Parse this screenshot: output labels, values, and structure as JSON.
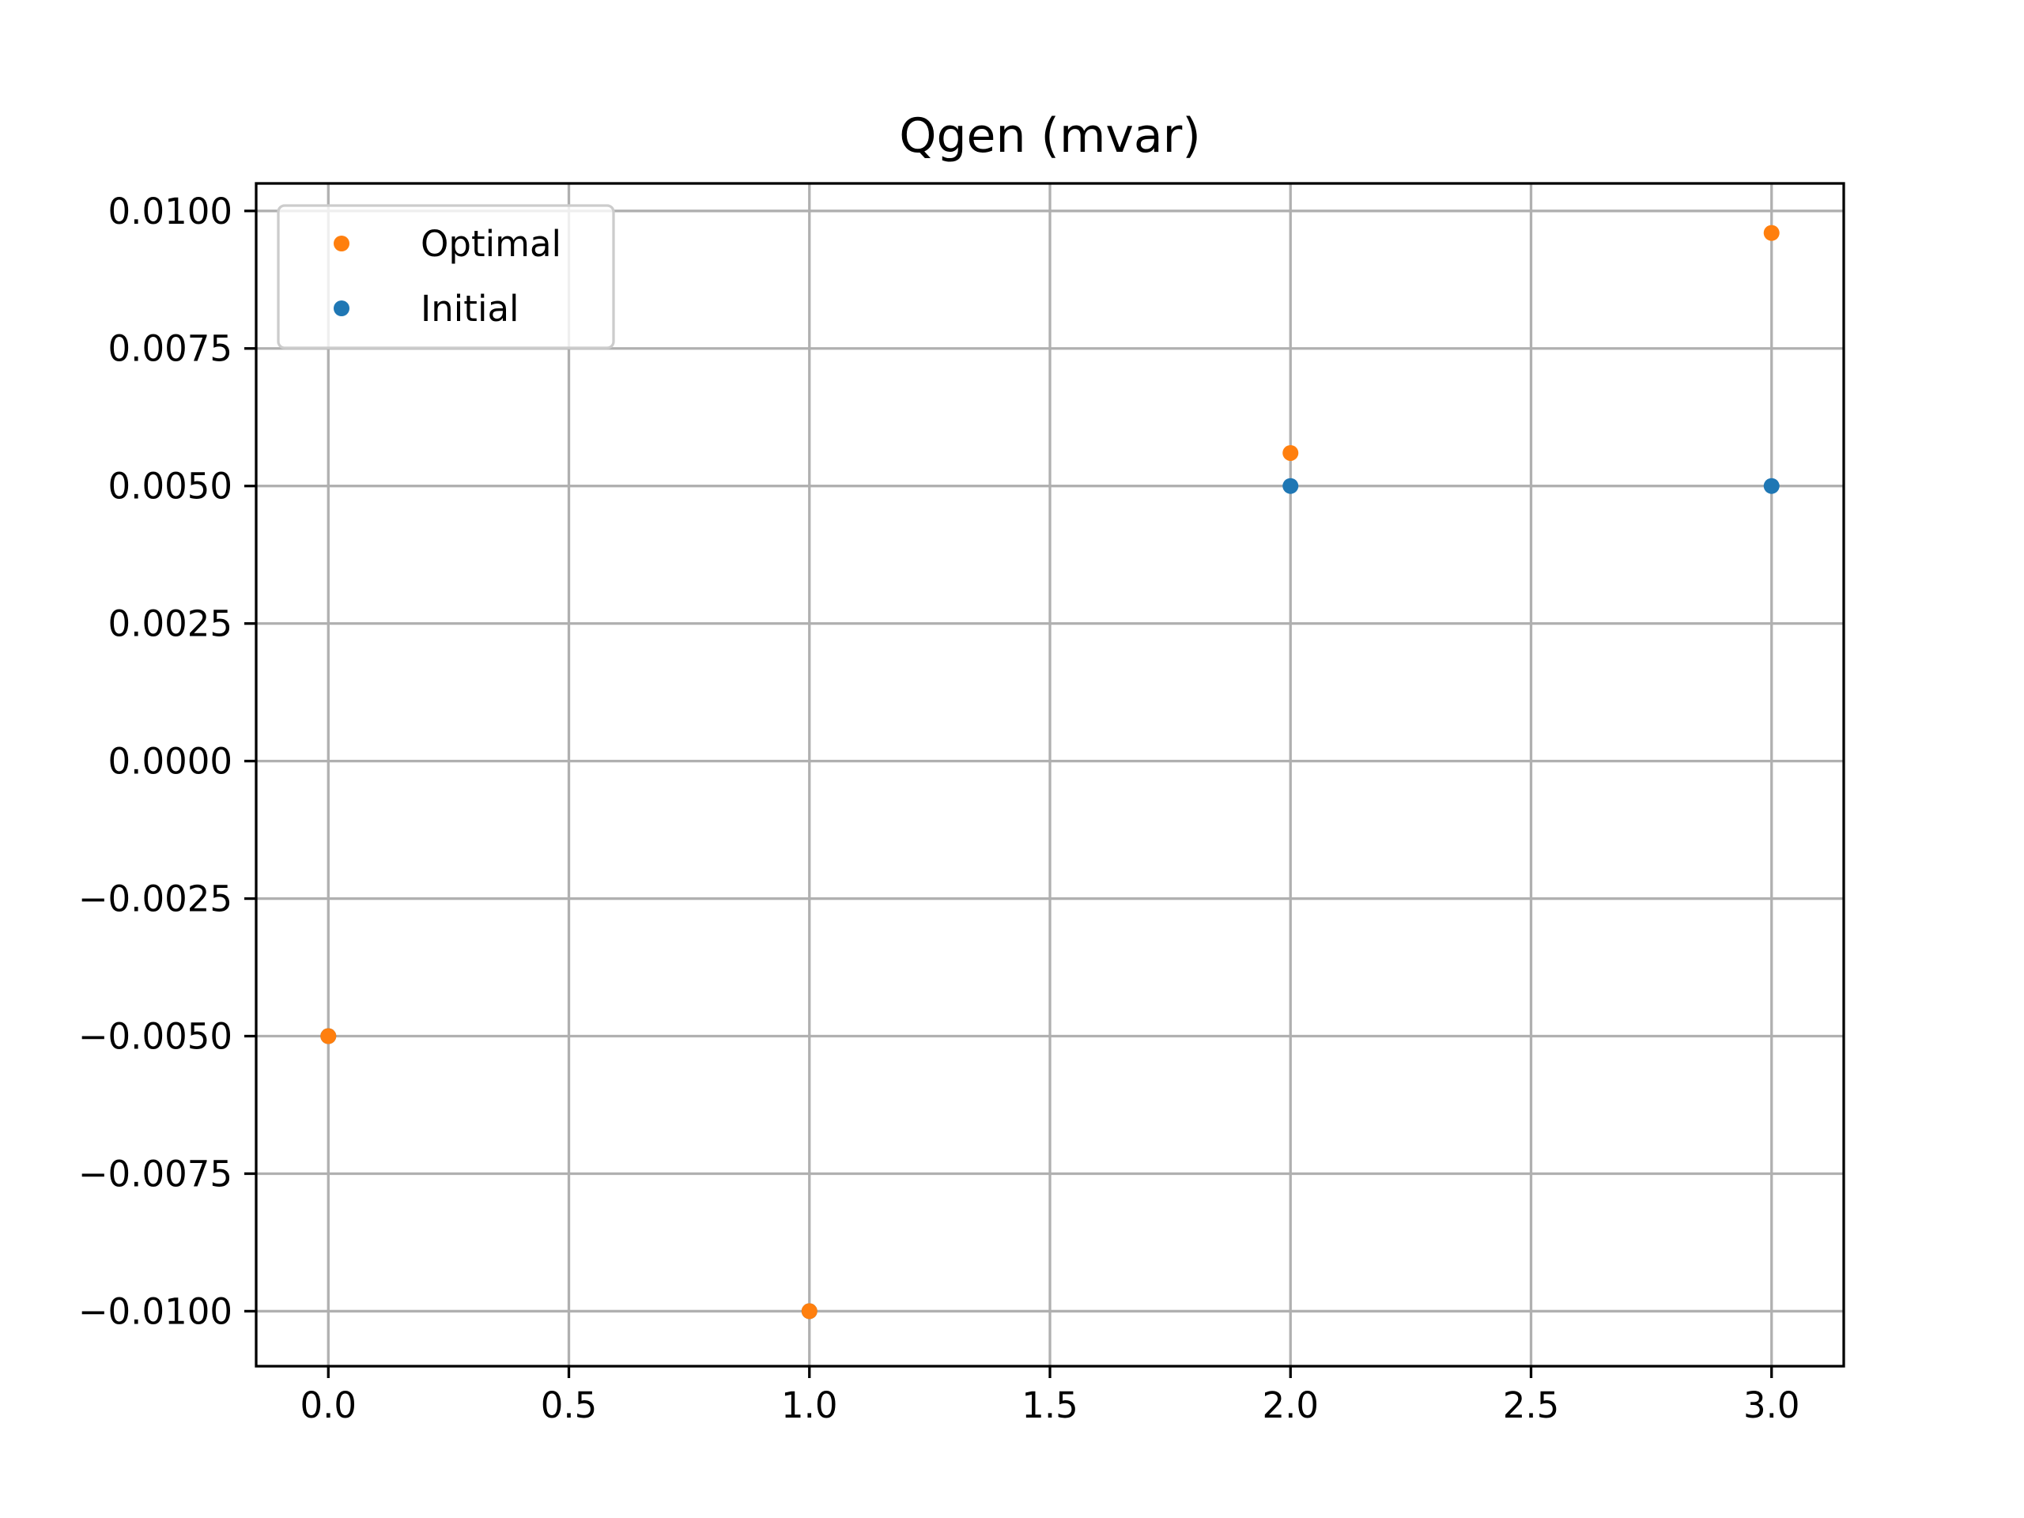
{
  "chart_data": {
    "type": "scatter",
    "title": "Qgen (mvar)",
    "xlabel": "",
    "ylabel": "",
    "xlim": [
      -0.15,
      3.15
    ],
    "ylim": [
      -0.011,
      0.0105
    ],
    "x_ticks": [
      0.0,
      0.5,
      1.0,
      1.5,
      2.0,
      2.5,
      3.0
    ],
    "x_tick_labels": [
      "0.0",
      "0.5",
      "1.0",
      "1.5",
      "2.0",
      "2.5",
      "3.0"
    ],
    "y_ticks": [
      0.01,
      0.0075,
      0.005,
      0.0025,
      0.0,
      -0.0025,
      -0.005,
      -0.0075,
      -0.01
    ],
    "y_tick_labels": [
      "0.0100",
      "0.0075",
      "0.0050",
      "0.0025",
      "0.0000",
      "−0.0025",
      "−0.0050",
      "−0.0075",
      "−0.0100"
    ],
    "grid": true,
    "legend_position": "top-left",
    "series": [
      {
        "name": "Optimal",
        "color": "#ff7f0e",
        "x": [
          0,
          1,
          2,
          3
        ],
        "y": [
          -0.005,
          -0.01,
          0.0056,
          0.0096
        ]
      },
      {
        "name": "Initial",
        "color": "#1f77b4",
        "x": [
          0,
          1,
          2,
          3
        ],
        "y": [
          -0.005,
          -0.01,
          0.005,
          0.005
        ]
      }
    ],
    "draw_order": [
      "Initial",
      "Optimal"
    ]
  }
}
